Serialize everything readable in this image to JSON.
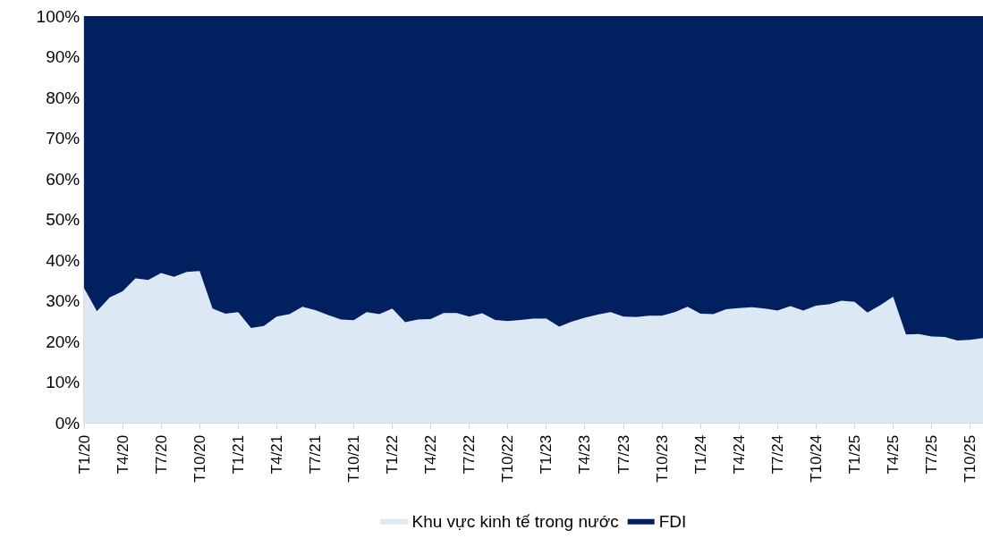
{
  "chart_data": {
    "type": "area",
    "stacked": true,
    "categories": [
      "T1/20",
      null,
      null,
      "T4/20",
      null,
      null,
      "T7/20",
      null,
      null,
      "T10/20",
      null,
      null,
      "T1/21",
      null,
      null,
      "T4/21",
      null,
      null,
      "T7/21",
      null,
      null,
      "T10/21",
      null,
      null,
      "T1/22",
      null,
      null,
      "T4/22",
      null,
      null,
      "T7/22",
      null,
      null,
      "T10/22",
      null,
      null,
      "T1/23",
      null,
      null,
      "T4/23",
      null,
      null,
      "T7/23",
      null,
      null,
      "T10/23",
      null,
      null,
      "T1/24",
      null,
      null,
      "T4/24",
      null,
      null,
      "T7/24",
      null,
      null,
      "T10/24",
      null,
      null,
      "T1/25",
      null,
      null,
      "T4/25",
      null,
      null,
      "T7/25",
      null,
      null,
      "T10/25",
      null
    ],
    "series": [
      {
        "name": "Khu vực kinh tế trong nước",
        "color": "#dde8f5",
        "values": [
          33.1,
          27.4,
          30.8,
          32.3,
          35.5,
          35.1,
          36.8,
          35.9,
          37.1,
          37.3,
          28.1,
          26.8,
          27.2,
          23.3,
          23.8,
          26.1,
          26.7,
          28.5,
          27.7,
          26.5,
          25.4,
          25.2,
          27.2,
          26.7,
          28.1,
          24.7,
          25.4,
          25.5,
          27.0,
          27.0,
          26.1,
          26.9,
          25.3,
          25.0,
          25.3,
          25.6,
          25.6,
          23.6,
          24.9,
          25.8,
          26.6,
          27.2,
          26.1,
          26.0,
          26.3,
          26.3,
          27.2,
          28.5,
          26.8,
          26.7,
          27.9,
          28.2,
          28.4,
          28.1,
          27.6,
          28.7,
          27.6,
          28.8,
          29.1,
          30.0,
          29.7,
          27.1,
          28.9,
          31.0,
          21.7,
          21.8,
          21.2,
          21.1,
          20.2,
          20.4,
          20.8
        ]
      },
      {
        "name": "FDI",
        "color": "#002060",
        "values": [
          66.9,
          72.6,
          69.2,
          67.7,
          64.5,
          64.9,
          63.2,
          64.1,
          62.9,
          62.7,
          71.9,
          73.2,
          72.8,
          76.7,
          76.2,
          73.9,
          73.3,
          71.5,
          72.3,
          73.5,
          74.6,
          74.8,
          72.8,
          73.3,
          71.9,
          75.3,
          74.6,
          74.5,
          73.0,
          73.0,
          73.9,
          73.1,
          74.7,
          75.0,
          74.7,
          74.4,
          74.4,
          76.4,
          75.1,
          74.2,
          73.4,
          72.8,
          73.9,
          74.0,
          73.7,
          73.7,
          72.8,
          71.5,
          73.2,
          73.3,
          72.1,
          71.8,
          71.6,
          71.9,
          72.4,
          71.3,
          72.4,
          71.2,
          70.9,
          70.0,
          70.3,
          72.9,
          71.1,
          69.0,
          78.3,
          78.2,
          78.8,
          78.9,
          79.8,
          79.6,
          79.2
        ]
      }
    ],
    "ylim": [
      0,
      100
    ],
    "yticks": [
      {
        "value": 0,
        "label": "0%"
      },
      {
        "value": 10,
        "label": "10%"
      },
      {
        "value": 20,
        "label": "20%"
      },
      {
        "value": 30,
        "label": "30%"
      },
      {
        "value": 40,
        "label": "40%"
      },
      {
        "value": 50,
        "label": "50%"
      },
      {
        "value": 60,
        "label": "60%"
      },
      {
        "value": 70,
        "label": "70%"
      },
      {
        "value": 80,
        "label": "80%"
      },
      {
        "value": 90,
        "label": "90%"
      },
      {
        "value": 100,
        "label": "100%"
      }
    ],
    "legend": "bottom"
  }
}
